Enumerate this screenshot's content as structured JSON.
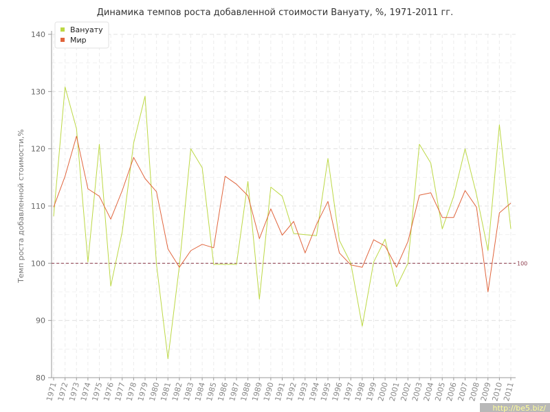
{
  "chart_data": {
    "type": "line",
    "title": "Динамика темпов роста добавленной стоимости Вануату, %, 1971-2011 гг.",
    "xlabel": "",
    "ylabel": "Темп роста добавленной стоимости,%",
    "ylim": [
      80,
      140
    ],
    "yticks": [
      80,
      90,
      100,
      110,
      120,
      130,
      140
    ],
    "grid": true,
    "legend_position": "top-left",
    "x": [
      "1971",
      "1972",
      "1973",
      "1974",
      "1975",
      "1976",
      "1977",
      "1978",
      "1979",
      "1980",
      "1981",
      "1982",
      "1983",
      "1984",
      "1985",
      "1986",
      "1987",
      "1988",
      "1989",
      "1990",
      "1991",
      "1992",
      "1993",
      "1994",
      "1995",
      "1996",
      "1997",
      "1998",
      "1999",
      "2000",
      "2001",
      "2002",
      "2003",
      "2004",
      "2005",
      "2006",
      "2007",
      "2008",
      "2009",
      "2010",
      "2011"
    ],
    "series": [
      {
        "name": "Вануату",
        "color": "#bcd844",
        "values": [
          108.2,
          130.8,
          123.5,
          100.2,
          120.8,
          96.0,
          105.5,
          121.0,
          129.2,
          99.8,
          83.3,
          99.5,
          120.0,
          116.7,
          99.8,
          99.8,
          99.8,
          114.3,
          93.7,
          113.3,
          111.7,
          105.2,
          105.0,
          104.8,
          118.3,
          104.0,
          100.0,
          89.0,
          100.2,
          104.2,
          95.9,
          100.0,
          120.8,
          117.5,
          106.0,
          111.7,
          120.0,
          112.0,
          102.2,
          124.2,
          106.0
        ]
      },
      {
        "name": "Мир",
        "color": "#e0643c",
        "values": [
          109.8,
          115.2,
          122.2,
          113.0,
          111.7,
          107.7,
          112.7,
          118.5,
          114.8,
          112.5,
          102.5,
          99.3,
          102.2,
          103.3,
          102.7,
          115.2,
          113.8,
          111.8,
          104.3,
          109.5,
          104.9,
          107.3,
          101.8,
          106.8,
          110.8,
          101.8,
          99.7,
          99.3,
          104.1,
          103.0,
          99.3,
          103.8,
          111.9,
          112.3,
          108.0,
          108.0,
          112.7,
          109.8,
          95.0,
          108.8,
          110.5
        ]
      }
    ],
    "reference_line": {
      "value": 100,
      "label": "100",
      "color": "#8b3a4a"
    }
  },
  "watermark": {
    "text": "http://be5.biz/"
  }
}
